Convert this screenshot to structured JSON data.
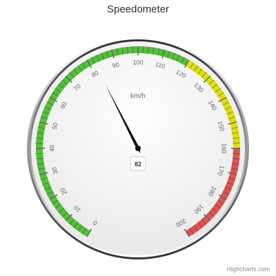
{
  "chart_data": {
    "type": "gauge",
    "title": "Speedometer",
    "unit_label": "km/h",
    "value": 82,
    "min": 0,
    "max": 200,
    "major_ticks": [
      0,
      10,
      20,
      30,
      40,
      50,
      60,
      70,
      80,
      90,
      100,
      110,
      120,
      130,
      140,
      150,
      160,
      170,
      180,
      190,
      200
    ],
    "bands": [
      {
        "from": 0,
        "to": 120,
        "color": "#55BF3B"
      },
      {
        "from": 120,
        "to": 160,
        "color": "#DDDF0D"
      },
      {
        "from": 160,
        "to": 200,
        "color": "#DF5353"
      }
    ]
  },
  "credits": "Highcharts.com"
}
